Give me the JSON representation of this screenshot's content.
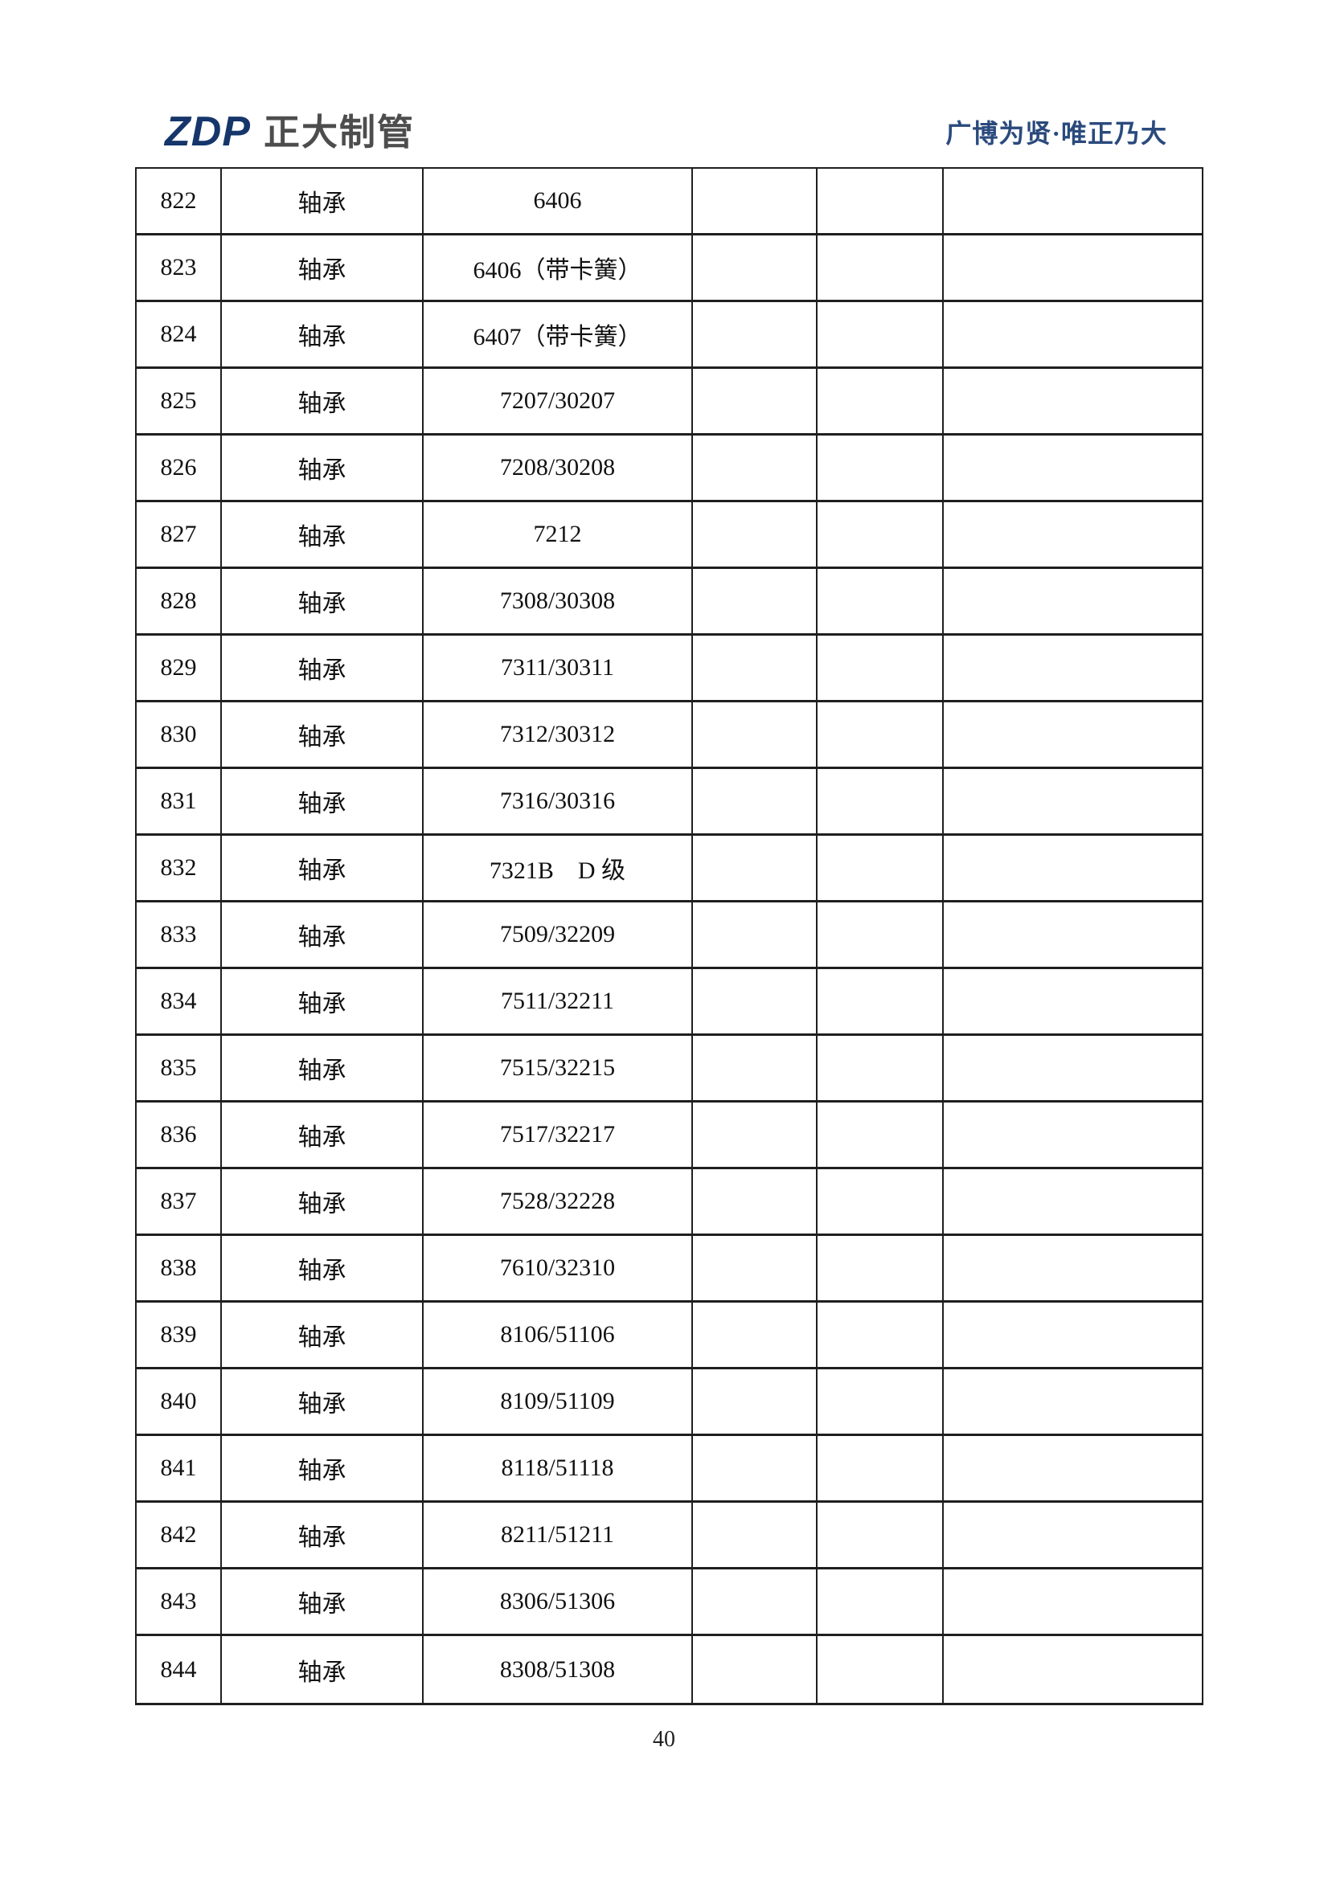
{
  "header": {
    "logo_zdp": "ZDP",
    "logo_company": "正大制管",
    "slogan": "广博为贤·唯正乃大"
  },
  "colors": {
    "logo_blue": "#16366b",
    "logo_gray": "#4d4d4d",
    "slogan_blue": "#2a4a7d",
    "border": "#1f1f1f",
    "text": "#111111"
  },
  "table": {
    "rows": [
      [
        "822",
        "轴承",
        "6406"
      ],
      [
        "823",
        "轴承",
        "6406（带卡簧）"
      ],
      [
        "824",
        "轴承",
        "6407（带卡簧）"
      ],
      [
        "825",
        "轴承",
        "7207/30207"
      ],
      [
        "826",
        "轴承",
        "7208/30208"
      ],
      [
        "827",
        "轴承",
        "7212"
      ],
      [
        "828",
        "轴承",
        "7308/30308"
      ],
      [
        "829",
        "轴承",
        "7311/30311"
      ],
      [
        "830",
        "轴承",
        "7312/30312"
      ],
      [
        "831",
        "轴承",
        "7316/30316"
      ],
      [
        "832",
        "轴承",
        "7321B    D 级"
      ],
      [
        "833",
        "轴承",
        "7509/32209"
      ],
      [
        "834",
        "轴承",
        "7511/32211"
      ],
      [
        "835",
        "轴承",
        "7515/32215"
      ],
      [
        "836",
        "轴承",
        "7517/32217"
      ],
      [
        "837",
        "轴承",
        "7528/32228"
      ],
      [
        "838",
        "轴承",
        "7610/32310"
      ],
      [
        "839",
        "轴承",
        "8106/51106"
      ],
      [
        "840",
        "轴承",
        "8109/51109"
      ],
      [
        "841",
        "轴承",
        "8118/51118"
      ],
      [
        "842",
        "轴承",
        "8211/51211"
      ],
      [
        "843",
        "轴承",
        "8306/51306"
      ],
      [
        "844",
        "轴承",
        "8308/51308"
      ]
    ]
  },
  "page": {
    "number": "40"
  }
}
